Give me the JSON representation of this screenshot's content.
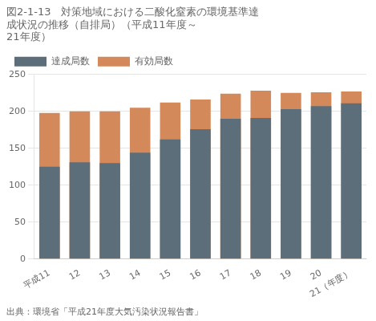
{
  "chart_data": {
    "type": "bar",
    "title": [
      "図2-1-13　対策地域における二酸化窒素の環境基準達",
      "成状況の推移（自排局）（平成11年度～",
      "21年度）"
    ],
    "annotations": [
      "出典：環境省「平成21年度大気汚染状況報告書」"
    ],
    "categories": [
      "平成11",
      "12",
      "13",
      "14",
      "15",
      "16",
      "17",
      "18",
      "19",
      "20",
      "21（年度）"
    ],
    "series": [
      {
        "name": "達成局数",
        "color": "#5c6e7a",
        "values": [
          125,
          131,
          130,
          144,
          162,
          176,
          190,
          191,
          203,
          207,
          211
        ]
      },
      {
        "name": "有効局数",
        "color": "#d4895a",
        "values": [
          198,
          200,
          200,
          205,
          212,
          216,
          224,
          228,
          225,
          226,
          227
        ]
      }
    ],
    "ylim": [
      0,
      250
    ],
    "yticks": [
      0,
      50,
      100,
      150,
      200,
      250
    ],
    "grid": true,
    "legend": "upper left"
  }
}
